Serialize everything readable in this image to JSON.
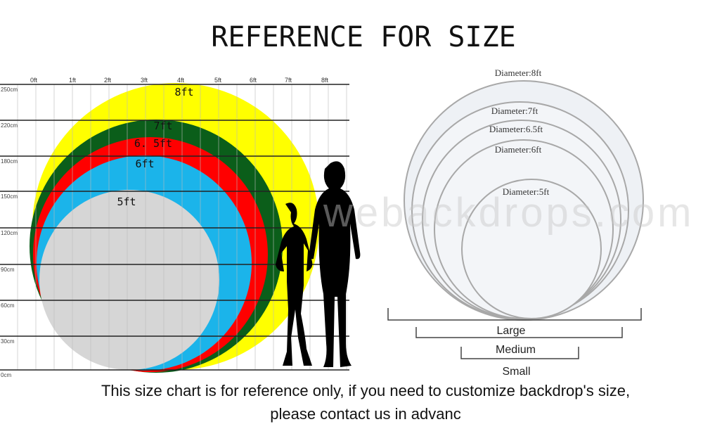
{
  "title": "REFERENCE FOR SIZE",
  "ft_ticks": [
    "0ft",
    "1ft",
    "2ft",
    "3ft",
    "4ft",
    "5ft",
    "6ft",
    "7ft",
    "8ft"
  ],
  "cm_ticks": [
    "250cm",
    "220cm",
    "180cm",
    "150cm",
    "120cm",
    "90cm",
    "60cm",
    "30cm",
    "0cm"
  ],
  "circles": [
    {
      "label": "8ft",
      "color": "#ffff00"
    },
    {
      "label": "7ft",
      "color": "#0b5e1a"
    },
    {
      "label": "6. 5ft",
      "color": "#ff0000"
    },
    {
      "label": "6ft",
      "color": "#1bb4ea"
    },
    {
      "label": "5ft",
      "color": "#d6d6d6"
    }
  ],
  "diameters": [
    "Diameter:8ft",
    "Diameter:7ft",
    "Diameter:6.5ft",
    "Diameter:6ft",
    "Diameter:5ft"
  ],
  "sizes": [
    "Large",
    "Medium",
    "Small"
  ],
  "watermark": "webackdrops.com",
  "caption": [
    "This size chart is for reference only, if you need to customize backdrop's size,",
    "please contact us in advanc"
  ]
}
